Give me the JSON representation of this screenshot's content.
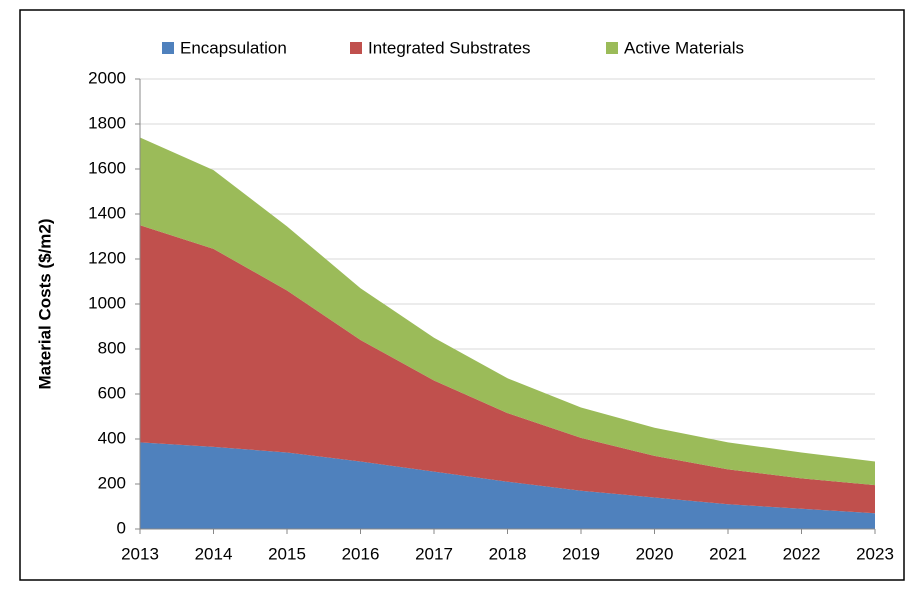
{
  "chart_data": {
    "type": "stacked_area",
    "y_label": "Material Costs ($/m2)",
    "categories": [
      "2013",
      "2014",
      "2015",
      "2016",
      "2017",
      "2018",
      "2019",
      "2020",
      "2021",
      "2022",
      "2023"
    ],
    "series": [
      {
        "name": "Encapsulation",
        "color": "#4f81bd",
        "values": [
          385,
          365,
          340,
          300,
          255,
          210,
          170,
          140,
          110,
          90,
          70
        ]
      },
      {
        "name": "Integrated Substrates",
        "color": "#c0504d",
        "values": [
          965,
          880,
          720,
          540,
          405,
          305,
          235,
          185,
          155,
          135,
          125
        ]
      },
      {
        "name": "Active Materials",
        "color": "#9bbb59",
        "values": [
          390,
          350,
          285,
          230,
          190,
          155,
          135,
          125,
          120,
          115,
          105
        ]
      }
    ],
    "ylim": [
      0,
      2000
    ],
    "yticks": [
      0,
      200,
      400,
      600,
      800,
      1000,
      1200,
      1400,
      1600,
      1800,
      2000
    ],
    "grid": true,
    "legend": "top"
  }
}
